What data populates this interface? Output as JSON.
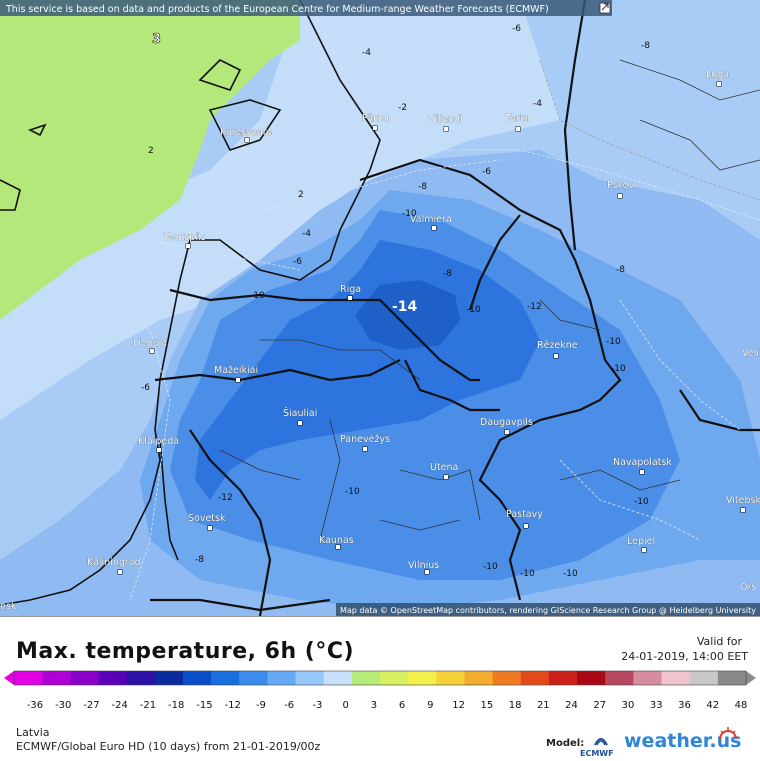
{
  "banner": "This service is based on data and products of the European Centre for Medium-range Weather Forecasts (ECMWF)",
  "attribution": "Map data © OpenStreetMap contributors, rendering GIScience Research Group @ Heidelberg University",
  "title": "Max. temperature, 6h (°C)",
  "valid_label": "Valid for",
  "valid_value": "24-01-2019, 14:00 EET",
  "region": "Latvia",
  "model_line": "ECMWF/Global Euro HD (10 days) from 21-01-2019/00z",
  "model_label": "Model:",
  "ecmwf_logo_text": "ECMWF",
  "brand": "weather.us",
  "scale_ticks": [
    "-36",
    "-30",
    "-27",
    "-24",
    "-21",
    "-18",
    "-15",
    "-12",
    "-9",
    "-6",
    "-3",
    "0",
    "3",
    "6",
    "9",
    "12",
    "15",
    "18",
    "21",
    "24",
    "27",
    "30",
    "33",
    "36",
    "42",
    "48"
  ],
  "scale_colors": [
    "#e400e4",
    "#b000d8",
    "#8a00c8",
    "#5a00b8",
    "#2c10a8",
    "#0a2aa0",
    "#0b4fc8",
    "#1a6ee0",
    "#3c8cf0",
    "#66aaf6",
    "#98c8fa",
    "#c8e2fc",
    "#b8ec7a",
    "#d6f060",
    "#f2f04a",
    "#f6d23a",
    "#f4ac2c",
    "#ee7a22",
    "#e24a1c",
    "#cc2018",
    "#a80a14",
    "#b84860",
    "#d88ca0",
    "#f0c4cc",
    "#c8c8c8",
    "#8a8a8a"
  ],
  "cities": [
    {
      "name": "Kuressaare"
    },
    {
      "name": "Pärnu"
    },
    {
      "name": "Viljandi"
    },
    {
      "name": "Tartu"
    },
    {
      "name": "Luga"
    },
    {
      "name": "Pskov"
    },
    {
      "name": "Valmiera"
    },
    {
      "name": "Ventspils"
    },
    {
      "name": "Riga"
    },
    {
      "name": "Liepāja"
    },
    {
      "name": "Rēzekne"
    },
    {
      "name": "Mažeikiai"
    },
    {
      "name": "Šiauliai"
    },
    {
      "name": "Panevėžys"
    },
    {
      "name": "Daugavpils"
    },
    {
      "name": "Klaipėda"
    },
    {
      "name": "Utena"
    },
    {
      "name": "Navapolatsk"
    },
    {
      "name": "Sovetsk"
    },
    {
      "name": "Pastavy"
    },
    {
      "name": "Vitebsk"
    },
    {
      "name": "Kaunas"
    },
    {
      "name": "Lepiel"
    },
    {
      "name": "Kaliningrad"
    },
    {
      "name": "Vilnius"
    },
    {
      "name": "Velí"
    },
    {
      "name": "Ors"
    },
    {
      "name": "nsk"
    }
  ],
  "contour_labels": [
    "3",
    "2",
    "-4",
    "-2",
    "-4",
    "-6",
    "-6",
    "-8",
    "2",
    "-4",
    "-8",
    "-10",
    "-6",
    "-10",
    "-8",
    "-12",
    "-10",
    "-6",
    "-8",
    "-10",
    "-10",
    "-12",
    "-10",
    "-10",
    "-10",
    "-8",
    "-10",
    "-10",
    "-14"
  ]
}
